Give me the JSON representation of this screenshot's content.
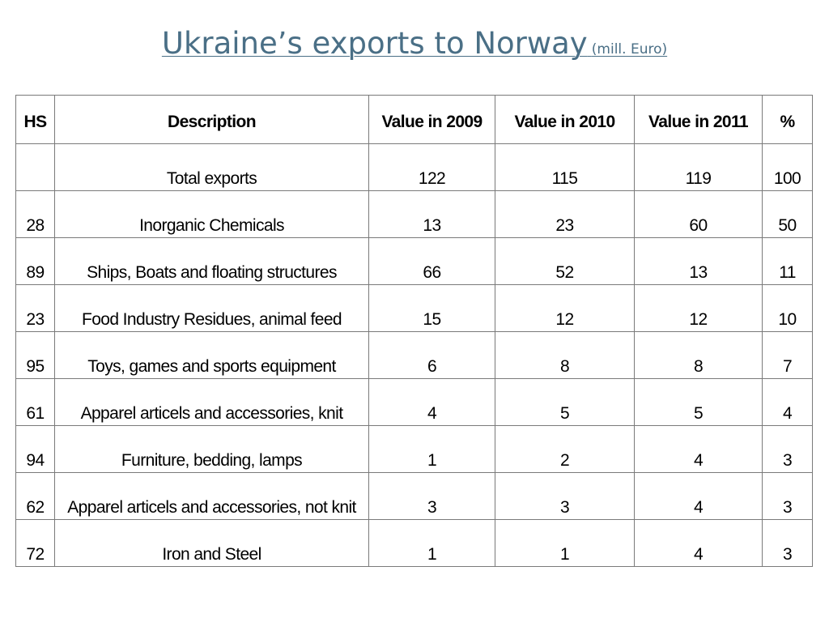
{
  "title": {
    "main": "Ukraine’s exports to Norway",
    "unit": "(mill. Euro)"
  },
  "table": {
    "headers": [
      "HS",
      "Description",
      "Value in 2009",
      "Value in 2010",
      "Value in 2011",
      "%"
    ],
    "rows": [
      [
        "",
        "Total exports",
        "122",
        "115",
        "119",
        "100"
      ],
      [
        "28",
        "Inorganic Chemicals",
        "13",
        "23",
        "60",
        "50"
      ],
      [
        "89",
        "Ships, Boats and floating structures",
        "66",
        "52",
        "13",
        "11"
      ],
      [
        "23",
        "Food Industry Residues, animal feed",
        "15",
        "12",
        "12",
        "10"
      ],
      [
        "95",
        "Toys, games and sports equipment",
        "6",
        "8",
        "8",
        "7"
      ],
      [
        "61",
        "Apparel articels and accessories, knit",
        "4",
        "5",
        "5",
        "4"
      ],
      [
        "94",
        "Furniture, bedding, lamps",
        "1",
        "2",
        "4",
        "3"
      ],
      [
        "62",
        "Apparel articels and accessories, not knit",
        "3",
        "3",
        "4",
        "3"
      ],
      [
        "72",
        "Iron and Steel",
        "1",
        "1",
        "4",
        "3"
      ]
    ]
  },
  "colors": {
    "title": "#4a6f86",
    "border": "#7a7a7a",
    "text": "#000000",
    "background": "#ffffff"
  }
}
